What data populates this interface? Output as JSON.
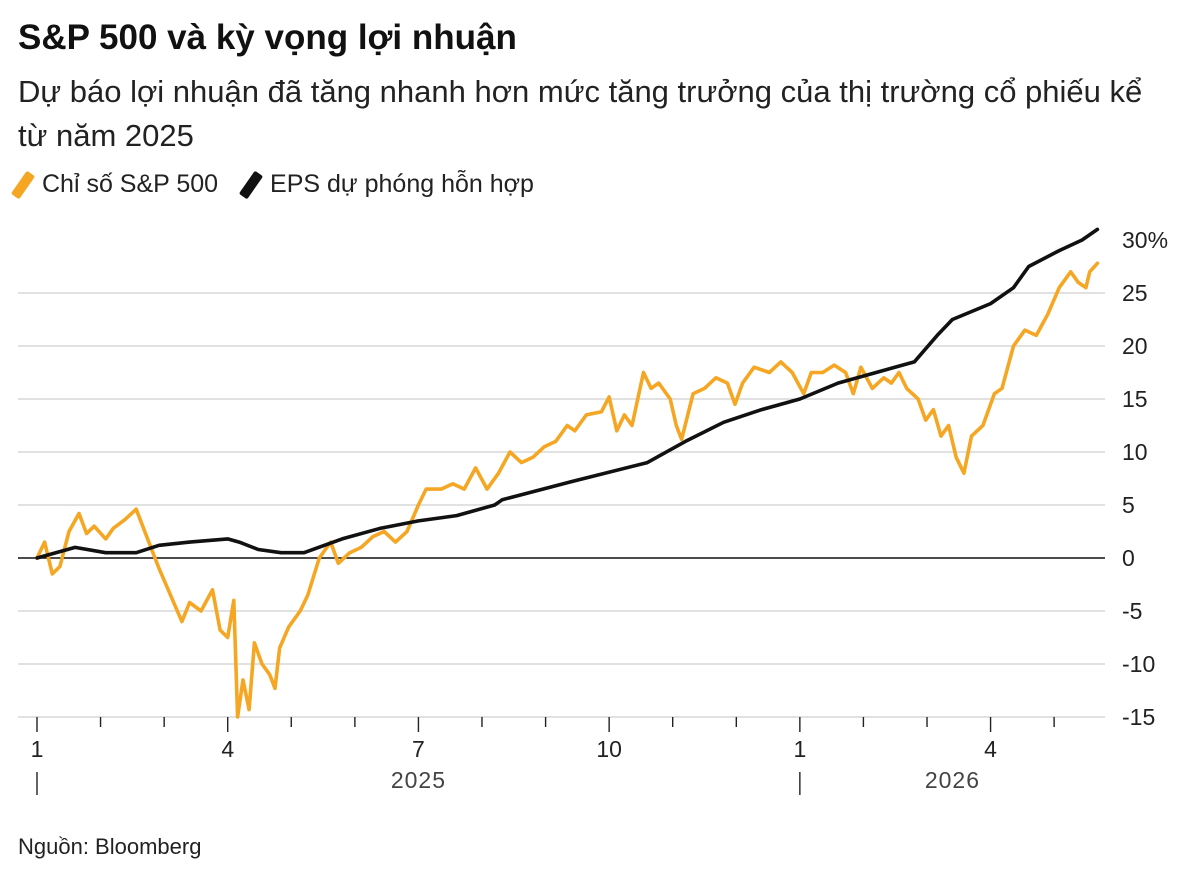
{
  "header": {
    "title": "S&P 500 và kỳ vọng lợi nhuận",
    "subtitle": "Dự báo lợi nhuận đã tăng nhanh hơn mức tăng trưởng của thị trường cổ phiếu kể từ năm 2025"
  },
  "footer": {
    "source": "Nguồn: Bloomberg"
  },
  "chart_data": {
    "type": "line",
    "title": "S&P 500 và kỳ vọng lợi nhuận",
    "subtitle": "Dự báo lợi nhuận đã tăng nhanh hơn mức tăng trưởng của thị trường cổ phiếu kể từ năm 2025",
    "y_unit": "%",
    "ylim": [
      -15,
      30
    ],
    "y_ticks": [
      30,
      25,
      20,
      15,
      10,
      5,
      0,
      -5,
      -10,
      -15
    ],
    "y_tick_labels": [
      "30%",
      "25",
      "20",
      "15",
      "10",
      "5",
      "0",
      "-5",
      "-10",
      "-15"
    ],
    "y_axis_side": "right",
    "grid": "horizontal",
    "legend_position": "top-left",
    "xlim": [
      2025.0,
      2026.4
    ],
    "x_ticks": [
      {
        "x": 2025.0,
        "label": "1",
        "major": true
      },
      {
        "x": 2025.0833,
        "label": "",
        "major": false
      },
      {
        "x": 2025.1667,
        "label": "",
        "major": false
      },
      {
        "x": 2025.25,
        "label": "4",
        "major": true
      },
      {
        "x": 2025.3333,
        "label": "",
        "major": false
      },
      {
        "x": 2025.4167,
        "label": "",
        "major": false
      },
      {
        "x": 2025.5,
        "label": "7",
        "major": true
      },
      {
        "x": 2025.5833,
        "label": "",
        "major": false
      },
      {
        "x": 2025.6667,
        "label": "",
        "major": false
      },
      {
        "x": 2025.75,
        "label": "10",
        "major": true
      },
      {
        "x": 2025.8333,
        "label": "",
        "major": false
      },
      {
        "x": 2025.9167,
        "label": "",
        "major": false
      },
      {
        "x": 2026.0,
        "label": "1",
        "major": true
      },
      {
        "x": 2026.0833,
        "label": "",
        "major": false
      },
      {
        "x": 2026.1667,
        "label": "",
        "major": false
      },
      {
        "x": 2026.25,
        "label": "4",
        "major": true
      },
      {
        "x": 2026.3333,
        "label": "",
        "major": false
      }
    ],
    "year_labels": [
      {
        "x": 2025.5,
        "label": "2025"
      },
      {
        "x": 2026.2,
        "label": "2026"
      }
    ],
    "year_markers": [
      2025.0,
      2026.0
    ],
    "series": [
      {
        "name": "Chỉ số S&P 500",
        "color": "#f5a623",
        "points": [
          [
            2025.0,
            0.0
          ],
          [
            2025.01,
            1.5
          ],
          [
            2025.02,
            -1.5
          ],
          [
            2025.03,
            -0.8
          ],
          [
            2025.042,
            2.5
          ],
          [
            2025.055,
            4.2
          ],
          [
            2025.065,
            2.3
          ],
          [
            2025.075,
            3.0
          ],
          [
            2025.09,
            1.8
          ],
          [
            2025.1,
            2.8
          ],
          [
            2025.115,
            3.6
          ],
          [
            2025.13,
            4.6
          ],
          [
            2025.145,
            1.8
          ],
          [
            2025.16,
            -1.0
          ],
          [
            2025.175,
            -3.5
          ],
          [
            2025.19,
            -6.0
          ],
          [
            2025.2,
            -4.2
          ],
          [
            2025.215,
            -5.0
          ],
          [
            2025.23,
            -3.0
          ],
          [
            2025.24,
            -6.8
          ],
          [
            2025.25,
            -7.5
          ],
          [
            2025.258,
            -4.0
          ],
          [
            2025.263,
            -15.0
          ],
          [
            2025.27,
            -11.5
          ],
          [
            2025.278,
            -14.3
          ],
          [
            2025.285,
            -8.0
          ],
          [
            2025.295,
            -10.0
          ],
          [
            2025.305,
            -11.0
          ],
          [
            2025.312,
            -12.3
          ],
          [
            2025.318,
            -8.5
          ],
          [
            2025.33,
            -6.5
          ],
          [
            2025.345,
            -5.0
          ],
          [
            2025.355,
            -3.5
          ],
          [
            2025.37,
            0.0
          ],
          [
            2025.385,
            1.5
          ],
          [
            2025.395,
            -0.5
          ],
          [
            2025.41,
            0.5
          ],
          [
            2025.425,
            1.0
          ],
          [
            2025.44,
            2.0
          ],
          [
            2025.455,
            2.5
          ],
          [
            2025.47,
            1.5
          ],
          [
            2025.485,
            2.5
          ],
          [
            2025.5,
            5.0
          ],
          [
            2025.51,
            6.5
          ],
          [
            2025.53,
            6.5
          ],
          [
            2025.545,
            7.0
          ],
          [
            2025.56,
            6.5
          ],
          [
            2025.575,
            8.5
          ],
          [
            2025.59,
            6.5
          ],
          [
            2025.605,
            8.0
          ],
          [
            2025.62,
            10.0
          ],
          [
            2025.635,
            9.0
          ],
          [
            2025.65,
            9.5
          ],
          [
            2025.665,
            10.5
          ],
          [
            2025.68,
            11.0
          ],
          [
            2025.695,
            12.5
          ],
          [
            2025.705,
            12.0
          ],
          [
            2025.72,
            13.5
          ],
          [
            2025.74,
            13.8
          ],
          [
            2025.75,
            15.2
          ],
          [
            2025.76,
            12.0
          ],
          [
            2025.77,
            13.5
          ],
          [
            2025.78,
            12.5
          ],
          [
            2025.795,
            17.5
          ],
          [
            2025.805,
            16.0
          ],
          [
            2025.815,
            16.5
          ],
          [
            2025.83,
            15.0
          ],
          [
            2025.838,
            12.5
          ],
          [
            2025.845,
            11.2
          ],
          [
            2025.86,
            15.5
          ],
          [
            2025.875,
            16.0
          ],
          [
            2025.89,
            17.0
          ],
          [
            2025.905,
            16.5
          ],
          [
            2025.915,
            14.5
          ],
          [
            2025.925,
            16.5
          ],
          [
            2025.94,
            18.0
          ],
          [
            2025.96,
            17.5
          ],
          [
            2025.975,
            18.5
          ],
          [
            2025.99,
            17.5
          ],
          [
            2026.005,
            15.5
          ],
          [
            2026.015,
            17.5
          ],
          [
            2026.03,
            17.5
          ],
          [
            2026.045,
            18.2
          ],
          [
            2026.06,
            17.5
          ],
          [
            2026.07,
            15.5
          ],
          [
            2026.08,
            18.0
          ],
          [
            2026.095,
            16.0
          ],
          [
            2026.11,
            17.0
          ],
          [
            2026.12,
            16.5
          ],
          [
            2026.13,
            17.5
          ],
          [
            2026.14,
            16.0
          ],
          [
            2026.155,
            15.0
          ],
          [
            2026.165,
            13.0
          ],
          [
            2026.175,
            14.0
          ],
          [
            2026.185,
            11.5
          ],
          [
            2026.195,
            12.5
          ],
          [
            2026.205,
            9.5
          ],
          [
            2026.215,
            8.0
          ],
          [
            2026.225,
            11.5
          ],
          [
            2026.24,
            12.5
          ],
          [
            2026.255,
            15.5
          ],
          [
            2026.265,
            16.0
          ],
          [
            2026.28,
            20.0
          ],
          [
            2026.295,
            21.5
          ],
          [
            2026.31,
            21.0
          ],
          [
            2026.325,
            23.0
          ],
          [
            2026.34,
            25.5
          ],
          [
            2026.355,
            27.0
          ],
          [
            2026.365,
            26.0
          ],
          [
            2026.375,
            25.5
          ],
          [
            2026.38,
            27.0
          ],
          [
            2026.39,
            27.8
          ]
        ]
      },
      {
        "name": "EPS dự phóng hỗn hợp",
        "color": "#111111",
        "points": [
          [
            2025.0,
            0.0
          ],
          [
            2025.05,
            1.0
          ],
          [
            2025.09,
            0.5
          ],
          [
            2025.13,
            0.5
          ],
          [
            2025.16,
            1.2
          ],
          [
            2025.2,
            1.5
          ],
          [
            2025.25,
            1.8
          ],
          [
            2025.265,
            1.5
          ],
          [
            2025.29,
            0.8
          ],
          [
            2025.32,
            0.5
          ],
          [
            2025.35,
            0.5
          ],
          [
            2025.4,
            1.8
          ],
          [
            2025.45,
            2.8
          ],
          [
            2025.5,
            3.5
          ],
          [
            2025.55,
            4.0
          ],
          [
            2025.6,
            5.0
          ],
          [
            2025.61,
            5.5
          ],
          [
            2025.7,
            7.2
          ],
          [
            2025.8,
            9.0
          ],
          [
            2025.85,
            11.0
          ],
          [
            2025.9,
            12.8
          ],
          [
            2025.95,
            14.0
          ],
          [
            2026.0,
            15.0
          ],
          [
            2026.05,
            16.5
          ],
          [
            2026.1,
            17.5
          ],
          [
            2026.15,
            18.5
          ],
          [
            2026.18,
            21.0
          ],
          [
            2026.2,
            22.5
          ],
          [
            2026.25,
            24.0
          ],
          [
            2026.28,
            25.5
          ],
          [
            2026.3,
            27.5
          ],
          [
            2026.34,
            29.0
          ],
          [
            2026.37,
            30.0
          ],
          [
            2026.39,
            31.0
          ]
        ]
      }
    ]
  }
}
